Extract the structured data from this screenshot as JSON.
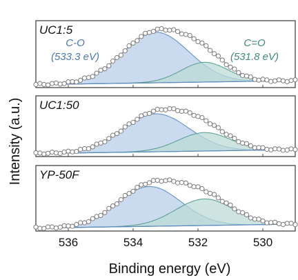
{
  "chart_data": {
    "type": "line",
    "xlabel": "Binding energy (eV)",
    "ylabel": "Intensity (a.u.)",
    "xlim": [
      537,
      529
    ],
    "x_reversed": true,
    "xticks": [
      536,
      534,
      532,
      530
    ],
    "grid": false,
    "colors": {
      "co": "#b8cfe9",
      "co_line": "#5b89c2",
      "c_o": "#bcdbd6",
      "c_o_line": "#4f9b8d",
      "frame": "#444444",
      "data": "#7a7a7a",
      "envelope": "#8c8c8c",
      "label_co": "#4a78b2",
      "label_c_o": "#3d8b7a"
    },
    "panels": [
      {
        "label": "UC1:5",
        "peaks": [
          {
            "name": "C-O",
            "center": 533.3,
            "fwhm": 2.4,
            "height": 0.82,
            "label_lines": [
              "C-O",
              "(533.3 eV)"
            ]
          },
          {
            "name": "C=O",
            "center": 531.8,
            "fwhm": 1.7,
            "height": 0.32,
            "label_lines": [
              "C=O",
              "(531.8 eV)"
            ]
          }
        ]
      },
      {
        "label": "UC1:50",
        "peaks": [
          {
            "name": "C-O",
            "center": 533.3,
            "fwhm": 2.4,
            "height": 0.68
          },
          {
            "name": "C=O",
            "center": 531.8,
            "fwhm": 1.9,
            "height": 0.33
          }
        ]
      },
      {
        "label": "YP-50F",
        "peaks": [
          {
            "name": "C-O",
            "center": 533.5,
            "fwhm": 2.3,
            "height": 0.66
          },
          {
            "name": "C=O",
            "center": 531.8,
            "fwhm": 2.1,
            "height": 0.44
          }
        ]
      }
    ]
  }
}
